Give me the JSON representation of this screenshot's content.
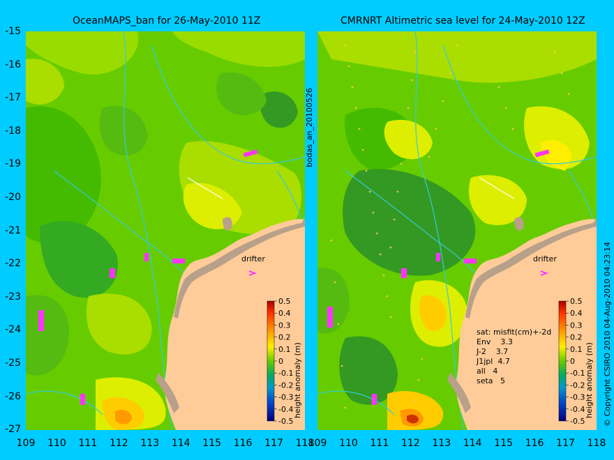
{
  "left_panel": {
    "title": "OceanMAPS_ban for 26-May-2010 11Z",
    "drifter_label": "drifter",
    "colorbar_label": "height anomaly (m)"
  },
  "right_panel": {
    "title": "CMRNRT Altimetric sea level  for 24-May-2010 12Z",
    "drifter_label": "drifter",
    "colorbar_label": "height anomaly (m)",
    "stats": [
      "sat: misfit(cm)+-2d",
      "Env    3.3",
      "J-2    3.7",
      "J1jpl  4.7",
      "all   4",
      "seta   5"
    ]
  },
  "side_label": "bodas_an_20100526",
  "copyright": "© Copyright CSIRO 2010  04-Aug-2010 04:23:14",
  "y_ticks": [
    "-15",
    "-16",
    "-17",
    "-18",
    "-19",
    "-20",
    "-21",
    "-22",
    "-23",
    "-24",
    "-25",
    "-26",
    "-27"
  ],
  "x_ticks": [
    "109",
    "110",
    "111",
    "112",
    "113",
    "114",
    "115",
    "116",
    "117",
    "118"
  ],
  "colorbar_ticks": [
    "0.5",
    "0.4",
    "0.3",
    "0.2",
    "0.1",
    "0",
    "-0.1",
    "-0.2",
    "-0.3",
    "-0.4",
    "-0.5"
  ],
  "colors": {
    "background": "#00ccff",
    "land": "#ffcc99",
    "coast": "#b8a08a",
    "sea_base": "#66cc00",
    "drifter": "#ff33ff"
  }
}
